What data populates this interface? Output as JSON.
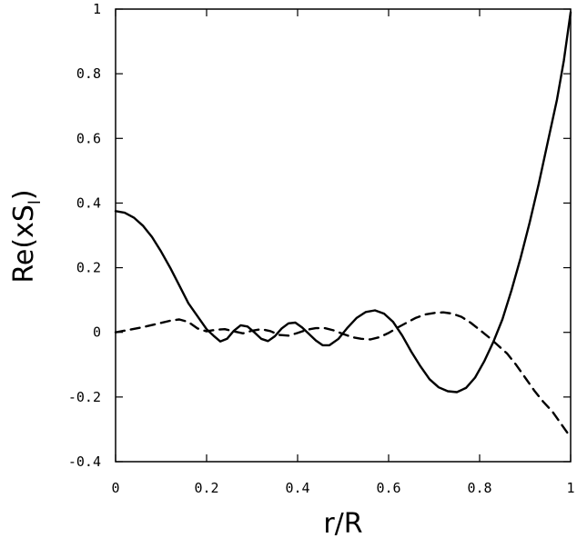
{
  "chart_data": {
    "type": "line",
    "xlabel": "r/R",
    "ylabel": "Re(xS",
    "ylabel_subscript": "l",
    "ylabel_close": ")",
    "xlim": [
      0,
      1
    ],
    "ylim": [
      -0.4,
      1
    ],
    "x_ticks": [
      0,
      0.2,
      0.4,
      0.6,
      0.8,
      1
    ],
    "x_tick_labels": [
      "0",
      "0.2",
      "0.4",
      "0.6",
      "0.8",
      "1"
    ],
    "y_ticks": [
      -0.4,
      -0.2,
      0,
      0.2,
      0.4,
      0.6,
      0.8,
      1
    ],
    "y_tick_labels": [
      "-0.4",
      "-0.2",
      "0",
      "0.2",
      "0.4",
      "0.6",
      "0.8",
      "1"
    ],
    "grid": false,
    "series": [
      {
        "style": "solid",
        "color": "#000000",
        "points": [
          [
            0.0,
            0.375
          ],
          [
            0.02,
            0.37
          ],
          [
            0.04,
            0.355
          ],
          [
            0.06,
            0.33
          ],
          [
            0.08,
            0.295
          ],
          [
            0.1,
            0.25
          ],
          [
            0.12,
            0.2
          ],
          [
            0.14,
            0.145
          ],
          [
            0.16,
            0.09
          ],
          [
            0.18,
            0.05
          ],
          [
            0.2,
            0.01
          ],
          [
            0.215,
            -0.01
          ],
          [
            0.23,
            -0.028
          ],
          [
            0.245,
            -0.02
          ],
          [
            0.26,
            0.005
          ],
          [
            0.275,
            0.022
          ],
          [
            0.29,
            0.018
          ],
          [
            0.305,
            0.0
          ],
          [
            0.32,
            -0.02
          ],
          [
            0.335,
            -0.027
          ],
          [
            0.35,
            -0.012
          ],
          [
            0.365,
            0.012
          ],
          [
            0.38,
            0.028
          ],
          [
            0.395,
            0.03
          ],
          [
            0.41,
            0.015
          ],
          [
            0.425,
            -0.005
          ],
          [
            0.44,
            -0.025
          ],
          [
            0.455,
            -0.04
          ],
          [
            0.47,
            -0.04
          ],
          [
            0.49,
            -0.02
          ],
          [
            0.51,
            0.015
          ],
          [
            0.53,
            0.045
          ],
          [
            0.55,
            0.063
          ],
          [
            0.57,
            0.068
          ],
          [
            0.59,
            0.058
          ],
          [
            0.61,
            0.032
          ],
          [
            0.63,
            -0.01
          ],
          [
            0.65,
            -0.06
          ],
          [
            0.67,
            -0.105
          ],
          [
            0.69,
            -0.145
          ],
          [
            0.71,
            -0.17
          ],
          [
            0.73,
            -0.182
          ],
          [
            0.75,
            -0.185
          ],
          [
            0.77,
            -0.172
          ],
          [
            0.79,
            -0.14
          ],
          [
            0.81,
            -0.09
          ],
          [
            0.83,
            -0.03
          ],
          [
            0.85,
            0.04
          ],
          [
            0.87,
            0.13
          ],
          [
            0.89,
            0.23
          ],
          [
            0.91,
            0.34
          ],
          [
            0.93,
            0.46
          ],
          [
            0.95,
            0.59
          ],
          [
            0.97,
            0.72
          ],
          [
            0.985,
            0.84
          ],
          [
            1.0,
            0.99
          ]
        ]
      },
      {
        "style": "dashed",
        "color": "#000000",
        "points": [
          [
            0.0,
            0.0
          ],
          [
            0.03,
            0.008
          ],
          [
            0.06,
            0.016
          ],
          [
            0.09,
            0.026
          ],
          [
            0.12,
            0.036
          ],
          [
            0.14,
            0.04
          ],
          [
            0.16,
            0.032
          ],
          [
            0.18,
            0.012
          ],
          [
            0.2,
            0.003
          ],
          [
            0.22,
            0.008
          ],
          [
            0.24,
            0.01
          ],
          [
            0.26,
            0.003
          ],
          [
            0.28,
            -0.003
          ],
          [
            0.3,
            0.005
          ],
          [
            0.32,
            0.01
          ],
          [
            0.34,
            0.004
          ],
          [
            0.36,
            -0.008
          ],
          [
            0.38,
            -0.01
          ],
          [
            0.4,
            -0.002
          ],
          [
            0.42,
            0.008
          ],
          [
            0.44,
            0.013
          ],
          [
            0.46,
            0.013
          ],
          [
            0.48,
            0.006
          ],
          [
            0.5,
            -0.005
          ],
          [
            0.52,
            -0.015
          ],
          [
            0.54,
            -0.02
          ],
          [
            0.56,
            -0.022
          ],
          [
            0.58,
            -0.015
          ],
          [
            0.6,
            -0.002
          ],
          [
            0.62,
            0.015
          ],
          [
            0.64,
            0.03
          ],
          [
            0.66,
            0.045
          ],
          [
            0.68,
            0.055
          ],
          [
            0.7,
            0.06
          ],
          [
            0.72,
            0.062
          ],
          [
            0.74,
            0.058
          ],
          [
            0.76,
            0.048
          ],
          [
            0.78,
            0.03
          ],
          [
            0.8,
            0.008
          ],
          [
            0.82,
            -0.015
          ],
          [
            0.84,
            -0.04
          ],
          [
            0.86,
            -0.065
          ],
          [
            0.88,
            -0.1
          ],
          [
            0.9,
            -0.14
          ],
          [
            0.92,
            -0.18
          ],
          [
            0.94,
            -0.215
          ],
          [
            0.96,
            -0.245
          ],
          [
            0.98,
            -0.285
          ],
          [
            1.0,
            -0.325
          ]
        ]
      }
    ]
  }
}
